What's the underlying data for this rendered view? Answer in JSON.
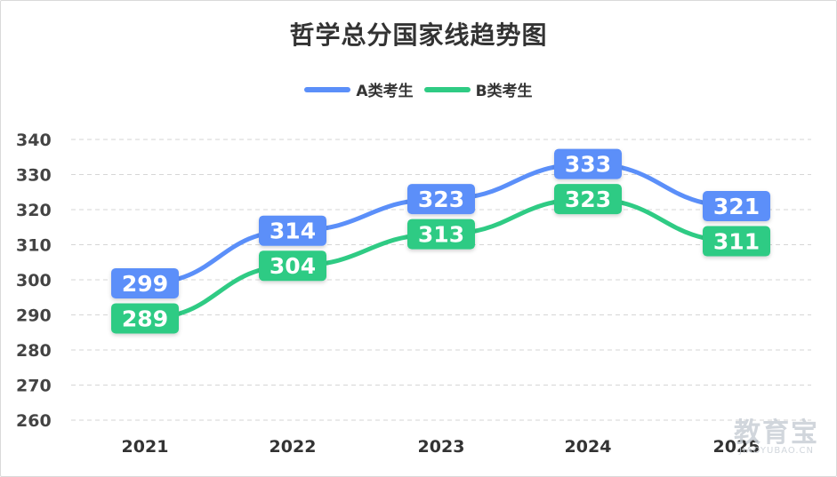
{
  "chart_data": {
    "type": "line",
    "title": "哲学总分国家线趋势图",
    "categories": [
      "2021",
      "2022",
      "2023",
      "2024",
      "2025"
    ],
    "series": [
      {
        "name": "A类考生",
        "color": "#5b8ff9",
        "values": [
          299,
          314,
          323,
          333,
          321
        ]
      },
      {
        "name": "B类考生",
        "color": "#2fcb84",
        "values": [
          289,
          304,
          313,
          323,
          311
        ]
      }
    ],
    "yticks": [
      260,
      270,
      280,
      290,
      300,
      310,
      320,
      330,
      340
    ],
    "ylim": [
      260,
      340
    ],
    "grid": true,
    "legend_position": "top-center"
  },
  "watermark": {
    "main": "教育宝",
    "sub": "JIAOYUBAO.CN"
  }
}
